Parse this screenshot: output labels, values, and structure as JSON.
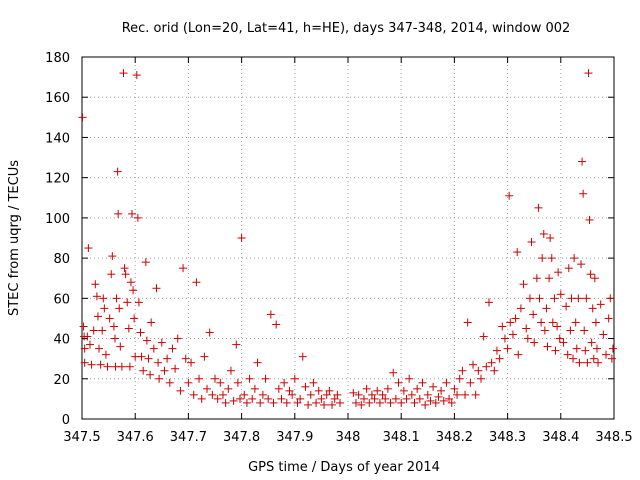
{
  "chart_data": {
    "type": "scatter",
    "title": "Rec. orid (Lon=20, Lat=41, h=HE), days 347-348, 2014, window 002",
    "xlabel": "GPS time / Days of year 2014",
    "ylabel": "STEC from uqrg / TECUs",
    "xlim": [
      347.5,
      348.5
    ],
    "ylim": [
      0,
      180
    ],
    "xticks": [
      "347.5",
      "347.6",
      "347.7",
      "347.8",
      "347.9",
      "348",
      "348.1",
      "348.2",
      "348.3",
      "348.4",
      "348.5"
    ],
    "yticks": [
      "0",
      "20",
      "40",
      "60",
      "80",
      "100",
      "120",
      "140",
      "160",
      "180"
    ],
    "grid": true,
    "marker": "+",
    "marker_color": "#cc0000",
    "series": [
      {
        "points": [
          [
            347.501,
            150
          ],
          [
            347.503,
            46
          ],
          [
            347.504,
            41
          ],
          [
            347.505,
            35
          ],
          [
            347.505,
            28
          ],
          [
            347.51,
            41
          ],
          [
            347.512,
            85
          ],
          [
            347.515,
            37
          ],
          [
            347.518,
            27
          ],
          [
            347.522,
            44
          ],
          [
            347.525,
            67
          ],
          [
            347.528,
            61
          ],
          [
            347.53,
            51
          ],
          [
            347.532,
            35
          ],
          [
            347.535,
            27
          ],
          [
            347.538,
            44
          ],
          [
            347.54,
            60
          ],
          [
            347.542,
            55
          ],
          [
            347.545,
            32
          ],
          [
            347.548,
            26
          ],
          [
            347.552,
            50
          ],
          [
            347.555,
            72
          ],
          [
            347.557,
            81
          ],
          [
            347.56,
            46
          ],
          [
            347.562,
            40
          ],
          [
            347.563,
            26
          ],
          [
            347.565,
            60
          ],
          [
            347.567,
            123
          ],
          [
            347.568,
            102
          ],
          [
            347.57,
            55
          ],
          [
            347.572,
            36
          ],
          [
            347.575,
            26
          ],
          [
            347.578,
            172
          ],
          [
            347.58,
            75
          ],
          [
            347.582,
            72
          ],
          [
            347.585,
            58
          ],
          [
            347.588,
            45
          ],
          [
            347.59,
            26
          ],
          [
            347.592,
            68
          ],
          [
            347.594,
            102
          ],
          [
            347.596,
            64
          ],
          [
            347.598,
            50
          ],
          [
            347.6,
            31
          ],
          [
            347.603,
            171
          ],
          [
            347.605,
            100
          ],
          [
            347.607,
            58
          ],
          [
            347.61,
            43
          ],
          [
            347.612,
            31
          ],
          [
            347.615,
            24
          ],
          [
            347.62,
            78
          ],
          [
            347.622,
            39
          ],
          [
            347.625,
            30
          ],
          [
            347.628,
            22
          ],
          [
            347.63,
            48
          ],
          [
            347.635,
            35
          ],
          [
            347.64,
            65
          ],
          [
            347.643,
            28
          ],
          [
            347.645,
            20
          ],
          [
            347.65,
            38
          ],
          [
            347.655,
            24
          ],
          [
            347.66,
            30
          ],
          [
            347.665,
            18
          ],
          [
            347.67,
            35
          ],
          [
            347.675,
            25
          ],
          [
            347.68,
            40
          ],
          [
            347.685,
            14
          ],
          [
            347.69,
            75
          ],
          [
            347.695,
            30
          ],
          [
            347.7,
            18
          ],
          [
            347.705,
            28
          ],
          [
            347.71,
            12
          ],
          [
            347.715,
            68
          ],
          [
            347.72,
            20
          ],
          [
            347.725,
            10
          ],
          [
            347.73,
            31
          ],
          [
            347.735,
            15
          ],
          [
            347.74,
            43
          ],
          [
            347.745,
            12
          ],
          [
            347.75,
            20
          ],
          [
            347.755,
            10
          ],
          [
            347.76,
            18
          ],
          [
            347.765,
            12
          ],
          [
            347.77,
            8
          ],
          [
            347.775,
            15
          ],
          [
            347.78,
            24
          ],
          [
            347.785,
            9
          ],
          [
            347.79,
            37
          ],
          [
            347.793,
            18
          ],
          [
            347.797,
            10
          ],
          [
            347.8,
            90
          ],
          [
            347.805,
            12
          ],
          [
            347.81,
            8
          ],
          [
            347.815,
            20
          ],
          [
            347.82,
            10
          ],
          [
            347.825,
            15
          ],
          [
            347.83,
            28
          ],
          [
            347.835,
            8
          ],
          [
            347.84,
            12
          ],
          [
            347.845,
            20
          ],
          [
            347.85,
            10
          ],
          [
            347.855,
            52
          ],
          [
            347.86,
            8
          ],
          [
            347.865,
            47
          ],
          [
            347.87,
            15
          ],
          [
            347.875,
            10
          ],
          [
            347.88,
            18
          ],
          [
            347.885,
            8
          ],
          [
            347.89,
            14
          ],
          [
            347.895,
            12
          ],
          [
            347.9,
            20
          ],
          [
            347.905,
            8
          ],
          [
            347.91,
            10
          ],
          [
            347.915,
            31
          ],
          [
            347.92,
            16
          ],
          [
            347.925,
            7
          ],
          [
            347.93,
            12
          ],
          [
            347.935,
            18
          ],
          [
            347.94,
            8
          ],
          [
            347.945,
            14
          ],
          [
            347.95,
            10
          ],
          [
            347.955,
            7
          ],
          [
            347.96,
            12
          ],
          [
            347.965,
            14
          ],
          [
            347.97,
            7
          ],
          [
            347.975,
            10
          ],
          [
            347.98,
            12
          ],
          [
            347.985,
            8
          ],
          [
            348.01,
            13
          ],
          [
            348.015,
            8
          ],
          [
            348.02,
            12
          ],
          [
            348.025,
            7
          ],
          [
            348.03,
            10
          ],
          [
            348.035,
            15
          ],
          [
            348.04,
            8
          ],
          [
            348.045,
            12
          ],
          [
            348.05,
            10
          ],
          [
            348.055,
            14
          ],
          [
            348.06,
            8
          ],
          [
            348.065,
            12
          ],
          [
            348.07,
            10
          ],
          [
            348.075,
            15
          ],
          [
            348.08,
            8
          ],
          [
            348.085,
            23
          ],
          [
            348.09,
            10
          ],
          [
            348.095,
            18
          ],
          [
            348.1,
            8
          ],
          [
            348.105,
            14
          ],
          [
            348.11,
            10
          ],
          [
            348.115,
            20
          ],
          [
            348.12,
            12
          ],
          [
            348.125,
            8
          ],
          [
            348.13,
            15
          ],
          [
            348.135,
            10
          ],
          [
            348.14,
            18
          ],
          [
            348.145,
            7
          ],
          [
            348.15,
            12
          ],
          [
            348.155,
            9
          ],
          [
            348.16,
            16
          ],
          [
            348.165,
            8
          ],
          [
            348.17,
            11
          ],
          [
            348.175,
            14
          ],
          [
            348.18,
            9
          ],
          [
            348.185,
            18
          ],
          [
            348.19,
            10
          ],
          [
            348.195,
            8
          ],
          [
            348.2,
            15
          ],
          [
            348.205,
            12
          ],
          [
            348.21,
            20
          ],
          [
            348.215,
            24
          ],
          [
            348.22,
            12
          ],
          [
            348.225,
            48
          ],
          [
            348.23,
            18
          ],
          [
            348.235,
            27
          ],
          [
            348.24,
            12
          ],
          [
            348.245,
            24
          ],
          [
            348.25,
            20
          ],
          [
            348.255,
            41
          ],
          [
            348.26,
            26
          ],
          [
            348.265,
            58
          ],
          [
            348.27,
            28
          ],
          [
            348.275,
            24
          ],
          [
            348.28,
            34
          ],
          [
            348.285,
            30
          ],
          [
            348.29,
            46
          ],
          [
            348.295,
            40
          ],
          [
            348.3,
            35
          ],
          [
            348.303,
            111
          ],
          [
            348.305,
            48
          ],
          [
            348.31,
            42
          ],
          [
            348.315,
            50
          ],
          [
            348.318,
            83
          ],
          [
            348.32,
            32
          ],
          [
            348.325,
            55
          ],
          [
            348.33,
            67
          ],
          [
            348.335,
            45
          ],
          [
            348.338,
            40
          ],
          [
            348.342,
            60
          ],
          [
            348.345,
            88
          ],
          [
            348.348,
            52
          ],
          [
            348.35,
            38
          ],
          [
            348.355,
            70
          ],
          [
            348.358,
            105
          ],
          [
            348.36,
            60
          ],
          [
            348.363,
            48
          ],
          [
            348.365,
            80
          ],
          [
            348.368,
            92
          ],
          [
            348.37,
            44
          ],
          [
            348.373,
            55
          ],
          [
            348.375,
            36
          ],
          [
            348.378,
            70
          ],
          [
            348.38,
            90
          ],
          [
            348.383,
            80
          ],
          [
            348.385,
            48
          ],
          [
            348.388,
            60
          ],
          [
            348.39,
            34
          ],
          [
            348.393,
            46
          ],
          [
            348.395,
            73
          ],
          [
            348.398,
            40
          ],
          [
            348.4,
            62
          ],
          [
            348.405,
            38
          ],
          [
            348.41,
            56
          ],
          [
            348.413,
            32
          ],
          [
            348.415,
            75
          ],
          [
            348.418,
            44
          ],
          [
            348.42,
            60
          ],
          [
            348.423,
            30
          ],
          [
            348.425,
            80
          ],
          [
            348.428,
            48
          ],
          [
            348.43,
            35
          ],
          [
            348.433,
            60
          ],
          [
            348.435,
            28
          ],
          [
            348.438,
            77
          ],
          [
            348.44,
            128
          ],
          [
            348.442,
            112
          ],
          [
            348.444,
            44
          ],
          [
            348.446,
            34
          ],
          [
            348.448,
            60
          ],
          [
            348.45,
            28
          ],
          [
            348.452,
            172
          ],
          [
            348.454,
            99
          ],
          [
            348.456,
            72
          ],
          [
            348.458,
            38
          ],
          [
            348.46,
            55
          ],
          [
            348.462,
            30
          ],
          [
            348.464,
            70
          ],
          [
            348.466,
            48
          ],
          [
            348.468,
            35
          ],
          [
            348.47,
            28
          ],
          [
            348.475,
            57
          ],
          [
            348.48,
            42
          ],
          [
            348.485,
            32
          ],
          [
            348.49,
            50
          ],
          [
            348.493,
            60
          ],
          [
            348.496,
            30
          ],
          [
            348.498,
            35
          ]
        ]
      }
    ]
  }
}
